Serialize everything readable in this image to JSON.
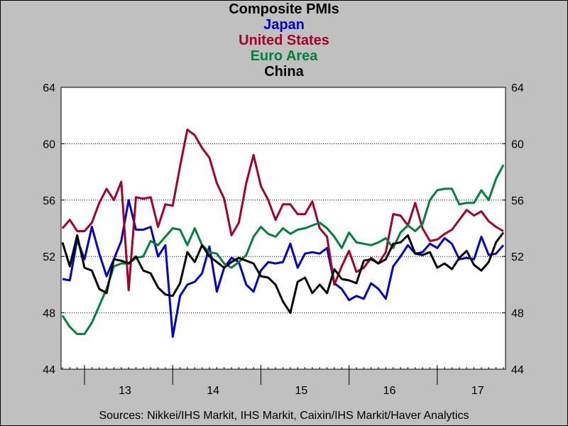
{
  "chart_data": {
    "type": "line",
    "title": "Composite PMIs",
    "source": "Sources:  Nikkei/IHS Markit, IHS Markit, Caixin/IHS Markit/Haver Analytics",
    "ylim": [
      44,
      64
    ],
    "y_ticks": [
      44,
      48,
      52,
      56,
      60,
      64
    ],
    "x_tick_labels": [
      "13",
      "14",
      "15",
      "16",
      "17"
    ],
    "x_start": "2012-10",
    "series": [
      {
        "name": "Japan",
        "color": "#0000c8",
        "values": [
          50.4,
          50.3,
          53.2,
          51.8,
          54.1,
          52.2,
          50.6,
          51.8,
          53.1,
          56.0,
          53.9,
          53.9,
          54.1,
          52.0,
          52.8,
          46.3,
          49.2,
          50.0,
          50.2,
          50.8,
          52.7,
          49.5,
          51.2,
          51.9,
          51.6,
          50.0,
          49.5,
          51.0,
          51.6,
          51.5,
          51.6,
          52.9,
          51.2,
          52.2,
          52.3,
          52.2,
          52.6,
          50.1,
          49.7,
          48.9,
          49.2,
          49.0,
          50.1,
          49.7,
          49.0,
          51.3,
          52.0,
          52.8,
          52.2,
          52.3,
          52.9,
          52.6,
          53.3,
          52.9,
          51.8,
          51.9,
          51.8,
          53.4,
          52.1,
          52.2,
          52.8
        ]
      },
      {
        "name": "United States",
        "color": "#a0002a",
        "values": [
          54.0,
          54.6,
          53.8,
          53.8,
          54.4,
          55.8,
          56.8,
          56.0,
          57.3,
          49.6,
          56.2,
          56.1,
          56.2,
          54.1,
          55.7,
          55.6,
          58.4,
          61.0,
          60.6,
          59.7,
          59.0,
          57.2,
          56.1,
          53.5,
          54.4,
          57.2,
          59.2,
          57.0,
          56.0,
          54.6,
          55.7,
          55.7,
          55.0,
          55.0,
          55.9,
          54.0,
          53.4,
          50.0,
          51.3,
          52.4,
          50.9,
          51.2,
          51.9,
          51.5,
          52.3,
          55.0,
          54.9,
          54.2,
          55.8,
          54.0,
          53.1,
          53.2,
          53.6,
          53.9,
          54.6,
          55.3,
          54.9,
          55.2,
          54.5,
          54.1,
          53.8
        ]
      },
      {
        "name": "Euro Area",
        "color": "#00803c",
        "values": [
          47.8,
          47.0,
          46.5,
          46.5,
          47.3,
          48.5,
          49.7,
          51.3,
          51.5,
          51.5,
          51.9,
          52.0,
          53.1,
          52.8,
          53.4,
          54.0,
          53.9,
          52.8,
          54.0,
          52.8,
          52.3,
          52.2,
          51.5,
          51.2,
          51.6,
          52.1,
          53.4,
          54.1,
          53.6,
          53.4,
          54.0,
          53.6,
          53.9,
          54.0,
          54.2,
          54.4,
          54.0,
          53.4,
          52.6,
          53.7,
          53.0,
          52.9,
          52.8,
          53.0,
          53.3,
          52.6,
          53.7,
          54.2,
          53.8,
          54.3,
          56.0,
          56.7,
          56.8,
          56.8,
          55.7,
          55.8,
          55.8,
          56.7,
          56.0,
          57.5,
          58.5
        ]
      },
      {
        "name": "China",
        "color": "#000000",
        "values": [
          53.0,
          51.3,
          53.5,
          51.2,
          51.0,
          49.7,
          49.4,
          51.8,
          51.7,
          51.5,
          52.0,
          51.0,
          50.8,
          49.8,
          49.3,
          49.2,
          50.1,
          52.3,
          51.6,
          52.8,
          52.0,
          51.6,
          51.2,
          51.6,
          51.9,
          51.7,
          51.5,
          50.6,
          50.5,
          50.0,
          48.8,
          48.0,
          50.2,
          50.5,
          49.4,
          50.0,
          49.4,
          51.1,
          50.4,
          50.3,
          50.1,
          51.7,
          51.8,
          51.5,
          51.8,
          52.9,
          53.0,
          53.5,
          52.2,
          52.1,
          52.3,
          51.2,
          51.5,
          51.1,
          51.9,
          52.4,
          51.4,
          51.0,
          51.6,
          53.0,
          53.7
        ]
      }
    ]
  }
}
